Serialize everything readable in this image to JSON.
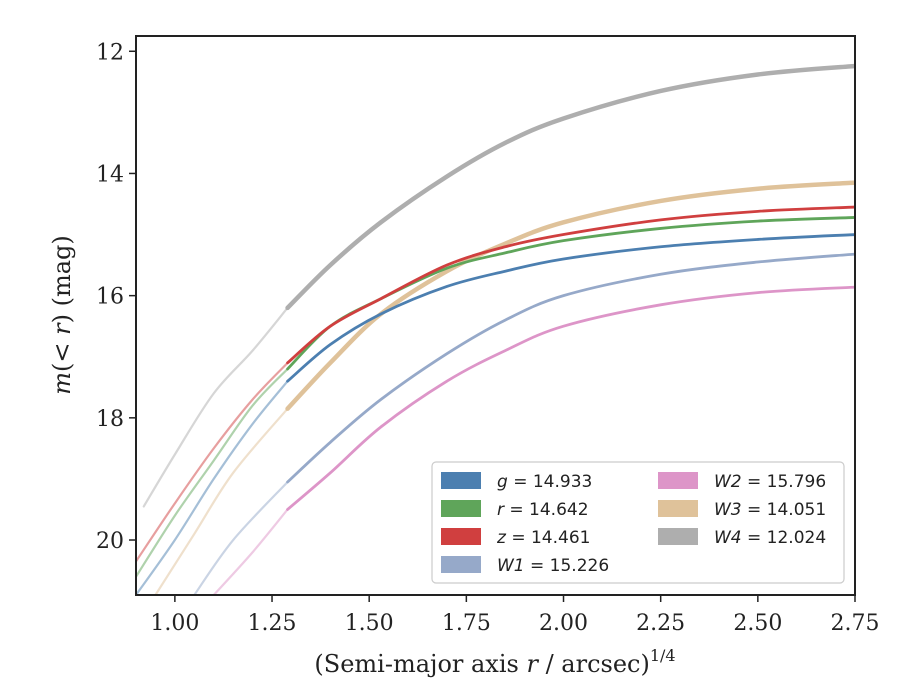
{
  "chart_data": {
    "type": "line",
    "xlabel": "(Semi-major axis r / arcsec)^{1/4}",
    "ylabel": "m(< r) (mag)",
    "xlabel_parts": {
      "main": "(Semi-major axis ",
      "var": "r",
      "tail": " / arcsec)",
      "sup": "1/4"
    },
    "ylabel_parts": {
      "m": "m",
      "lt": "(< ",
      "r": "r",
      "unit": ") (mag)"
    },
    "xlim": [
      0.9,
      2.75
    ],
    "ylim": [
      20.9,
      11.75
    ],
    "y_inverted": true,
    "xticks": [
      1.0,
      1.25,
      1.5,
      1.75,
      2.0,
      2.25,
      2.5,
      2.75
    ],
    "xtick_labels": [
      "1.00",
      "1.25",
      "1.50",
      "1.75",
      "2.00",
      "2.25",
      "2.50",
      "2.75"
    ],
    "yticks": [
      12,
      14,
      16,
      18,
      20
    ],
    "ytick_labels": [
      "12",
      "14",
      "16",
      "18",
      "20"
    ],
    "grid": false,
    "legend_position": "lower-right",
    "series": [
      {
        "name": "g",
        "value": "14.933",
        "color": "#4c7fb0",
        "faint_end": 1.29,
        "x": [
          0.9,
          1.0,
          1.1,
          1.2,
          1.29,
          1.4,
          1.53,
          1.7,
          1.85,
          2.0,
          2.25,
          2.5,
          2.75
        ],
        "y": [
          20.9,
          20.0,
          19.0,
          18.1,
          17.4,
          16.8,
          16.3,
          15.85,
          15.6,
          15.4,
          15.2,
          15.08,
          15.0
        ]
      },
      {
        "name": "r",
        "value": "14.642",
        "color": "#5fa55a",
        "faint_end": 1.29,
        "x": [
          0.9,
          1.0,
          1.1,
          1.2,
          1.29,
          1.4,
          1.53,
          1.7,
          1.85,
          2.0,
          2.25,
          2.5,
          2.75
        ],
        "y": [
          20.6,
          19.6,
          18.7,
          17.8,
          17.2,
          16.5,
          16.05,
          15.55,
          15.3,
          15.1,
          14.9,
          14.78,
          14.72
        ]
      },
      {
        "name": "z",
        "value": "14.461",
        "color": "#d03f3f",
        "faint_end": 1.29,
        "x": [
          0.9,
          1.0,
          1.1,
          1.2,
          1.29,
          1.4,
          1.53,
          1.7,
          1.85,
          2.0,
          2.25,
          2.5,
          2.75
        ],
        "y": [
          20.35,
          19.4,
          18.5,
          17.7,
          17.1,
          16.5,
          16.05,
          15.5,
          15.2,
          15.0,
          14.76,
          14.62,
          14.55
        ]
      },
      {
        "name": "W1",
        "value": "15.226",
        "color": "#96a9c9",
        "faint_end": 1.29,
        "x": [
          1.05,
          1.15,
          1.29,
          1.4,
          1.53,
          1.7,
          1.85,
          2.0,
          2.25,
          2.5,
          2.75
        ],
        "y": [
          20.9,
          20.0,
          19.05,
          18.4,
          17.7,
          16.95,
          16.4,
          16.0,
          15.65,
          15.45,
          15.32
        ]
      },
      {
        "name": "W2",
        "value": "15.796",
        "color": "#dd95c8",
        "faint_end": 1.29,
        "x": [
          1.1,
          1.2,
          1.29,
          1.4,
          1.53,
          1.7,
          1.85,
          2.0,
          2.25,
          2.5,
          2.75
        ],
        "y": [
          20.9,
          20.2,
          19.5,
          18.9,
          18.15,
          17.4,
          16.9,
          16.5,
          16.15,
          15.95,
          15.86
        ]
      },
      {
        "name": "W3",
        "value": "14.051",
        "color": "#dfc29a",
        "faint_end": 1.29,
        "x": [
          0.95,
          1.05,
          1.15,
          1.29,
          1.4,
          1.53,
          1.7,
          1.85,
          2.0,
          2.25,
          2.5,
          2.75
        ],
        "y": [
          20.9,
          19.9,
          18.9,
          17.85,
          17.1,
          16.3,
          15.6,
          15.15,
          14.8,
          14.45,
          14.25,
          14.15
        ]
      },
      {
        "name": "W4",
        "value": "12.024",
        "color": "#aeaeae",
        "faint_end": 1.29,
        "x": [
          0.92,
          1.0,
          1.1,
          1.2,
          1.29,
          1.4,
          1.53,
          1.7,
          1.85,
          2.0,
          2.25,
          2.5,
          2.75
        ],
        "y": [
          19.45,
          18.6,
          17.6,
          16.9,
          16.2,
          15.5,
          14.8,
          14.05,
          13.5,
          13.1,
          12.65,
          12.38,
          12.24
        ]
      }
    ],
    "legend_order": [
      0,
      3,
      1,
      5,
      2,
      4,
      6
    ],
    "legend_columns": [
      [
        "g",
        "r",
        "z",
        "W1"
      ],
      [
        "W2",
        "W3",
        "W4"
      ]
    ]
  }
}
